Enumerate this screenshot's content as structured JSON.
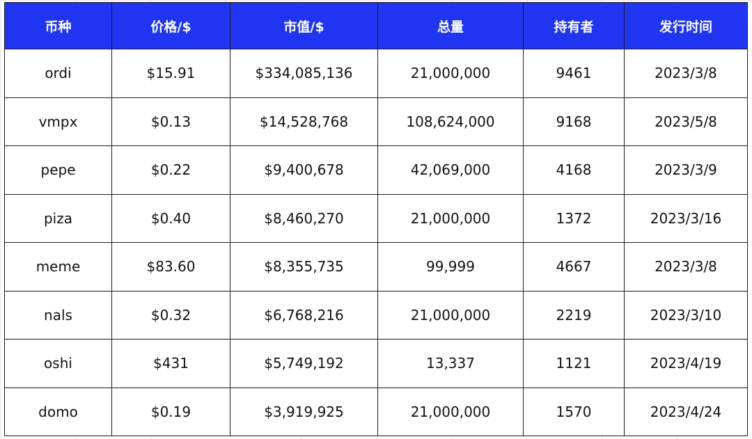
{
  "table": {
    "header_color": "#1f35f2",
    "columns": [
      "币种",
      "价格/$",
      "市值/$",
      "总量",
      "持有者",
      "发行时间"
    ],
    "rows": [
      [
        "ordi",
        "$15.91",
        "$334,085,136",
        "21,000,000",
        "9461",
        "2023/3/8"
      ],
      [
        "vmpx",
        "$0.13",
        "$14,528,768",
        "108,624,000",
        "9168",
        "2023/5/8"
      ],
      [
        "pepe",
        "$0.22",
        "$9,400,678",
        "42,069,000",
        "4168",
        "2023/3/9"
      ],
      [
        "piza",
        "$0.40",
        "$8,460,270",
        "21,000,000",
        "1372",
        "2023/3/16"
      ],
      [
        "meme",
        "$83.60",
        "$8,355,735",
        "99,999",
        "4667",
        "2023/3/8"
      ],
      [
        "nals",
        "$0.32",
        "$6,768,216",
        "21,000,000",
        "2219",
        "2023/3/10"
      ],
      [
        "oshi",
        "$431",
        "$5,749,192",
        "13,337",
        "1121",
        "2023/4/19"
      ],
      [
        "domo",
        "$0.19",
        "$3,919,925",
        "21,000,000",
        "1570",
        "2023/4/24"
      ]
    ]
  }
}
